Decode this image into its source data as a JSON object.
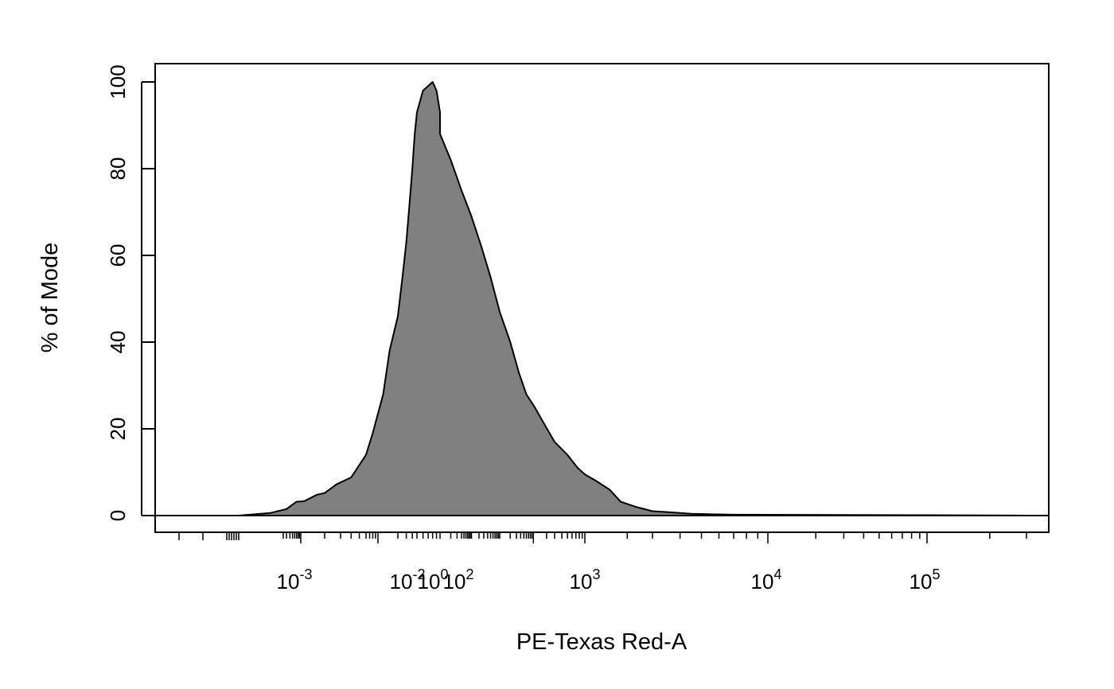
{
  "chart_data": {
    "type": "area",
    "title": "",
    "xlabel": "PE-Texas Red-A",
    "ylabel": "% of Mode",
    "x_scale": "biexponential",
    "ylim": [
      0,
      100
    ],
    "y_ticks": [
      "0",
      "20",
      "40",
      "60",
      "80",
      "100"
    ],
    "x_tick_labels": [
      {
        "base": "10",
        "exp": "-3"
      },
      {
        "base": "10",
        "exp": "-2"
      },
      {
        "base": "10",
        "exp": "0"
      },
      {
        "base": "10",
        "exp": "2"
      },
      {
        "base": "10",
        "exp": "3"
      },
      {
        "base": "10",
        "exp": "4"
      },
      {
        "base": "10",
        "exp": "5"
      }
    ],
    "fill_color": "#808080",
    "line_color": "#000000",
    "grid": false,
    "legend": false,
    "profile": [
      [
        -0.0005,
        0
      ],
      [
        -0.0003,
        0.3
      ],
      [
        -0.0002,
        0.6
      ],
      [
        0.0003,
        1.5
      ],
      [
        0.0007,
        3.2
      ],
      [
        0.0011,
        3.3
      ],
      [
        0.0016,
        4.8
      ],
      [
        0.002,
        5.2
      ],
      [
        0.0027,
        7.2
      ],
      [
        0.004,
        8.8
      ],
      [
        0.006,
        14
      ],
      [
        0.008,
        19
      ],
      [
        0.012,
        28
      ],
      [
        0.015,
        38
      ],
      [
        0.02,
        46
      ],
      [
        0.025,
        55
      ],
      [
        0.03,
        63
      ],
      [
        0.035,
        72
      ],
      [
        0.04,
        80
      ],
      [
        0.045,
        88
      ],
      [
        0.05,
        93
      ],
      [
        0.06,
        98
      ],
      [
        0.08,
        100
      ],
      [
        0.09,
        98
      ],
      [
        0.1,
        93
      ],
      [
        0.1,
        88
      ],
      [
        0.2,
        82
      ],
      [
        0.4,
        75
      ],
      [
        1,
        69
      ],
      [
        2.5,
        62
      ],
      [
        5,
        55
      ],
      [
        10,
        47
      ],
      [
        20,
        40
      ],
      [
        35,
        33
      ],
      [
        60,
        28
      ],
      [
        110,
        25
      ],
      [
        180,
        21
      ],
      [
        300,
        17
      ],
      [
        500,
        14
      ],
      [
        750,
        11
      ],
      [
        1000,
        9.5
      ],
      [
        1200,
        8
      ],
      [
        1500,
        6
      ],
      [
        1800,
        3.2
      ],
      [
        2300,
        2
      ],
      [
        3000,
        1
      ],
      [
        3500,
        0.8
      ],
      [
        4500,
        0.4
      ],
      [
        7000,
        0.2
      ],
      [
        100000,
        0.1
      ],
      [
        300000,
        0
      ]
    ]
  }
}
